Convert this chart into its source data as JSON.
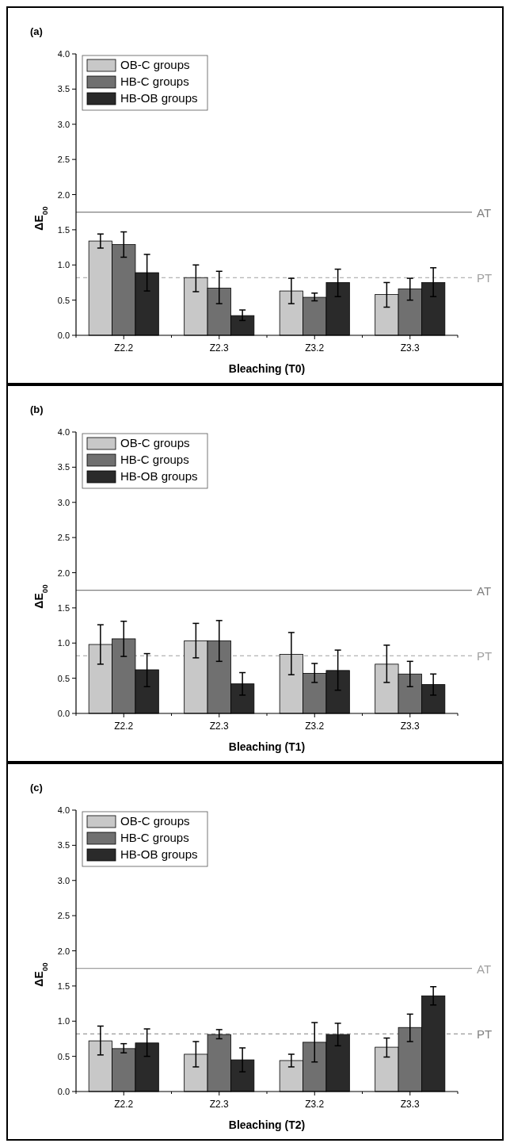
{
  "chart_data": [
    {
      "type": "bar",
      "title": "(a)",
      "xlabel": "Bleaching (T0)",
      "ylabel": "ΔE$_{00}$",
      "categories": [
        "Z2.2",
        "Z2.3",
        "Z3.2",
        "Z3.3"
      ],
      "series": [
        {
          "name": "OB-C groups",
          "color": "#c8c8c8",
          "values": [
            1.34,
            0.82,
            0.63,
            0.58
          ],
          "errors": [
            [
              1.24,
              1.44
            ],
            [
              0.62,
              1.0
            ],
            [
              0.45,
              0.81
            ],
            [
              0.4,
              0.75
            ]
          ]
        },
        {
          "name": "HB-C groups",
          "color": "#707070",
          "values": [
            1.29,
            0.67,
            0.54,
            0.66
          ],
          "errors": [
            [
              1.11,
              1.47
            ],
            [
              0.45,
              0.91
            ],
            [
              0.49,
              0.6
            ],
            [
              0.5,
              0.81
            ]
          ]
        },
        {
          "name": "HB-OB groups",
          "color": "#2a2a2a",
          "values": [
            0.89,
            0.28,
            0.75,
            0.75
          ],
          "errors": [
            [
              0.63,
              1.15
            ],
            [
              0.21,
              0.36
            ],
            [
              0.55,
              0.94
            ],
            [
              0.55,
              0.96
            ]
          ]
        }
      ],
      "ylim": [
        0,
        4
      ],
      "yticks": [
        {
          "value": 0,
          "label": "0.0"
        },
        {
          "value": 0.5,
          "label": "0.5"
        },
        {
          "value": 1,
          "label": "1.0"
        },
        {
          "value": 1.5,
          "label": "1.5"
        },
        {
          "value": 2,
          "label": "2.0"
        },
        {
          "value": 2.5,
          "label": "2.5"
        },
        {
          "value": 3,
          "label": "3.0"
        },
        {
          "value": 3.5,
          "label": "3.5"
        },
        {
          "value": 4,
          "label": "4.0"
        }
      ],
      "ref_lines": [
        {
          "axis": "y",
          "value": 1.75,
          "label": "AT",
          "color": "#808080",
          "line_style": "solid"
        },
        {
          "axis": "y",
          "value": 0.82,
          "label": "PT",
          "color": "#a0a0a0",
          "line_style": "dashed"
        }
      ],
      "legend": "top left",
      "grid": false
    },
    {
      "type": "bar",
      "title": "(b)",
      "xlabel": "Bleaching (T1)",
      "ylabel": "ΔE$_{00}$",
      "categories": [
        "Z2.2",
        "Z2.3",
        "Z3.2",
        "Z3.3"
      ],
      "series": [
        {
          "name": "OB-C groups",
          "color": "#c8c8c8",
          "values": [
            0.98,
            1.03,
            0.84,
            0.7
          ],
          "errors": [
            [
              0.7,
              1.26
            ],
            [
              0.79,
              1.28
            ],
            [
              0.55,
              1.15
            ],
            [
              0.44,
              0.97
            ]
          ]
        },
        {
          "name": "HB-C groups",
          "color": "#707070",
          "values": [
            1.06,
            1.03,
            0.57,
            0.56
          ],
          "errors": [
            [
              0.81,
              1.31
            ],
            [
              0.74,
              1.32
            ],
            [
              0.44,
              0.71
            ],
            [
              0.38,
              0.74
            ]
          ]
        },
        {
          "name": "HB-OB groups",
          "color": "#2a2a2a",
          "values": [
            0.62,
            0.42,
            0.61,
            0.41
          ],
          "errors": [
            [
              0.38,
              0.85
            ],
            [
              0.26,
              0.58
            ],
            [
              0.33,
              0.9
            ],
            [
              0.26,
              0.56
            ]
          ]
        }
      ],
      "ylim": [
        0,
        4
      ],
      "yticks": [
        {
          "value": 0,
          "label": "0.0"
        },
        {
          "value": 0.5,
          "label": "0.5"
        },
        {
          "value": 1,
          "label": "1.0"
        },
        {
          "value": 1.5,
          "label": "1.5"
        },
        {
          "value": 2,
          "label": "2.0"
        },
        {
          "value": 2.5,
          "label": "2.5"
        },
        {
          "value": 3,
          "label": "3.0"
        },
        {
          "value": 3.5,
          "label": "3.5"
        },
        {
          "value": 4,
          "label": "4.0"
        }
      ],
      "ref_lines": [
        {
          "axis": "y",
          "value": 1.75,
          "label": "AT",
          "color": "#808080",
          "line_style": "solid"
        },
        {
          "axis": "y",
          "value": 0.82,
          "label": "PT",
          "color": "#a0a0a0",
          "line_style": "dashed"
        }
      ],
      "legend": "top left",
      "grid": false
    },
    {
      "type": "bar",
      "title": "(c)",
      "xlabel": "Bleaching (T2)",
      "ylabel": "ΔE$_{00}$",
      "categories": [
        "Z2.2",
        "Z2.3",
        "Z3.2",
        "Z3.3"
      ],
      "series": [
        {
          "name": "OB-C groups",
          "color": "#c8c8c8",
          "values": [
            0.72,
            0.53,
            0.44,
            0.63
          ],
          "errors": [
            [
              0.52,
              0.93
            ],
            [
              0.35,
              0.71
            ],
            [
              0.35,
              0.53
            ],
            [
              0.49,
              0.76
            ]
          ]
        },
        {
          "name": "HB-C groups",
          "color": "#707070",
          "values": [
            0.61,
            0.81,
            0.7,
            0.91
          ],
          "errors": [
            [
              0.55,
              0.68
            ],
            [
              0.75,
              0.88
            ],
            [
              0.42,
              0.98
            ],
            [
              0.71,
              1.1
            ]
          ]
        },
        {
          "name": "HB-OB groups",
          "color": "#2a2a2a",
          "values": [
            0.69,
            0.45,
            0.81,
            1.36
          ],
          "errors": [
            [
              0.5,
              0.89
            ],
            [
              0.28,
              0.62
            ],
            [
              0.65,
              0.97
            ],
            [
              1.23,
              1.49
            ]
          ]
        }
      ],
      "ylim": [
        0,
        4
      ],
      "yticks": [
        {
          "value": 0,
          "label": "0.0"
        },
        {
          "value": 0.5,
          "label": "0.5"
        },
        {
          "value": 1,
          "label": "1.0"
        },
        {
          "value": 1.5,
          "label": "1.5"
        },
        {
          "value": 2,
          "label": "2.0"
        },
        {
          "value": 2.5,
          "label": "2.5"
        },
        {
          "value": 3,
          "label": "3.0"
        },
        {
          "value": 3.5,
          "label": "3.5"
        },
        {
          "value": 4,
          "label": "4.0"
        }
      ],
      "ref_lines": [
        {
          "axis": "y",
          "value": 1.75,
          "label": "AT",
          "color": "#a0a0a0",
          "line_style": "solid"
        },
        {
          "axis": "y",
          "value": 0.82,
          "label": "PT",
          "color": "#808080",
          "line_style": "dashed"
        }
      ],
      "legend": "top left",
      "grid": false
    }
  ]
}
